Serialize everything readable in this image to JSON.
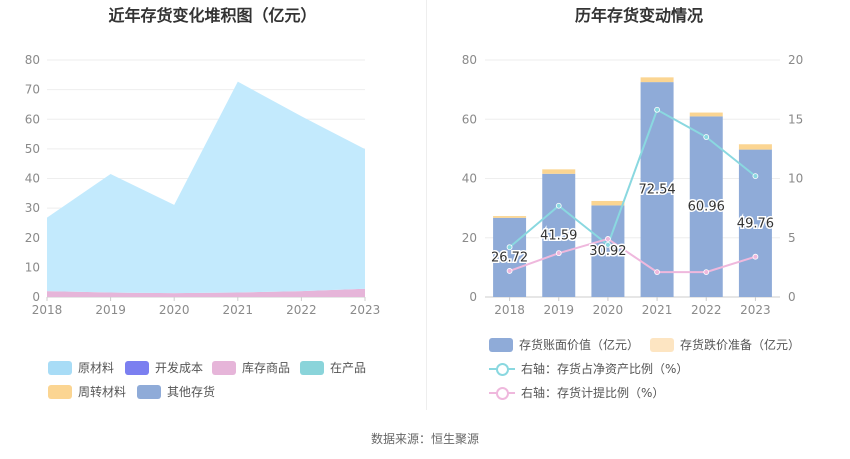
{
  "left_chart": {
    "title": "近年存货变化堆积图（亿元）",
    "legend": [
      {
        "label": "原材料",
        "color": "#a8dcf6"
      },
      {
        "label": "开发成本",
        "color": "#7b7ff0"
      },
      {
        "label": "库存商品",
        "color": "#e6b5d9"
      },
      {
        "label": "在产品",
        "color": "#8ad4da"
      },
      {
        "label": "周转材料",
        "color": "#fbd592"
      },
      {
        "label": "其他存货",
        "color": "#8fabd8"
      }
    ]
  },
  "right_chart": {
    "title": "历年存货变动情况",
    "legend": [
      {
        "label": "存货账面价值（亿元）",
        "color": "#8fabd8"
      },
      {
        "label": "存货跌价准备（亿元）",
        "color": "#fde5c2"
      },
      {
        "label": "右轴：存货占净资产比例（%）",
        "color": "#8ad8e0"
      },
      {
        "label": "右轴：存货计提比例（%）",
        "color": "#efb8dd"
      }
    ]
  },
  "source": "数据来源：恒生聚源",
  "chart_data": [
    {
      "type": "area",
      "title": "近年存货变化堆积图（亿元）",
      "x": [
        "2018",
        "2019",
        "2020",
        "2021",
        "2022",
        "2023"
      ],
      "ylim": [
        0,
        80
      ],
      "yticks": [
        0,
        10,
        20,
        30,
        40,
        50,
        60,
        70,
        80
      ],
      "stacked": true,
      "series": [
        {
          "name": "库存商品",
          "color": "#e6b5d9",
          "values": [
            2.0,
            1.5,
            1.3,
            1.5,
            2.0,
            2.8
          ]
        },
        {
          "name": "原材料",
          "color": "#c3eafd",
          "values": [
            24.8,
            40.0,
            29.8,
            71.2,
            59.0,
            47.1
          ]
        },
        {
          "name": "开发成本",
          "color": "#7b7ff0",
          "values": [
            0,
            0,
            0,
            0,
            0,
            0
          ]
        },
        {
          "name": "在产品",
          "color": "#8ad4da",
          "values": [
            0,
            0,
            0,
            0,
            0,
            0
          ]
        },
        {
          "name": "周转材料",
          "color": "#fbd592",
          "values": [
            0,
            0,
            0,
            0,
            0,
            0
          ]
        },
        {
          "name": "其他存货",
          "color": "#8fabd8",
          "values": [
            0,
            0,
            0,
            0,
            0,
            0
          ]
        }
      ],
      "grid": true,
      "legend_position": "bottom"
    },
    {
      "type": "bar",
      "title": "历年存货变动情况",
      "categories": [
        "2018",
        "2019",
        "2020",
        "2021",
        "2022",
        "2023"
      ],
      "ylim_left": [
        0,
        80
      ],
      "yticks_left": [
        0,
        20,
        40,
        60,
        80
      ],
      "ylim_right": [
        0,
        20
      ],
      "yticks_right": [
        0,
        5,
        10,
        15,
        20
      ],
      "bar_series": [
        {
          "name": "存货账面价值（亿元）",
          "color": "#8fabd8",
          "values": [
            26.72,
            41.59,
            30.92,
            72.54,
            60.96,
            49.76
          ],
          "labels": [
            "26.72",
            "41.59",
            "30.92",
            "72.54",
            "60.96",
            "49.76"
          ]
        },
        {
          "name": "存货跌价准备（亿元）",
          "color": "#fbd592",
          "values": [
            0.6,
            1.5,
            1.5,
            1.6,
            1.3,
            1.8
          ]
        }
      ],
      "line_series": [
        {
          "name": "右轴：存货占净资产比例（%）",
          "color": "#8ad8e0",
          "axis": "right",
          "values": [
            4.2,
            7.7,
            4.4,
            15.8,
            13.5,
            10.2
          ]
        },
        {
          "name": "右轴：存货计提比例（%）",
          "color": "#efb8dd",
          "axis": "right",
          "values": [
            2.2,
            3.7,
            4.9,
            2.1,
            2.1,
            3.4
          ]
        }
      ],
      "grid": true,
      "legend_position": "bottom"
    }
  ]
}
